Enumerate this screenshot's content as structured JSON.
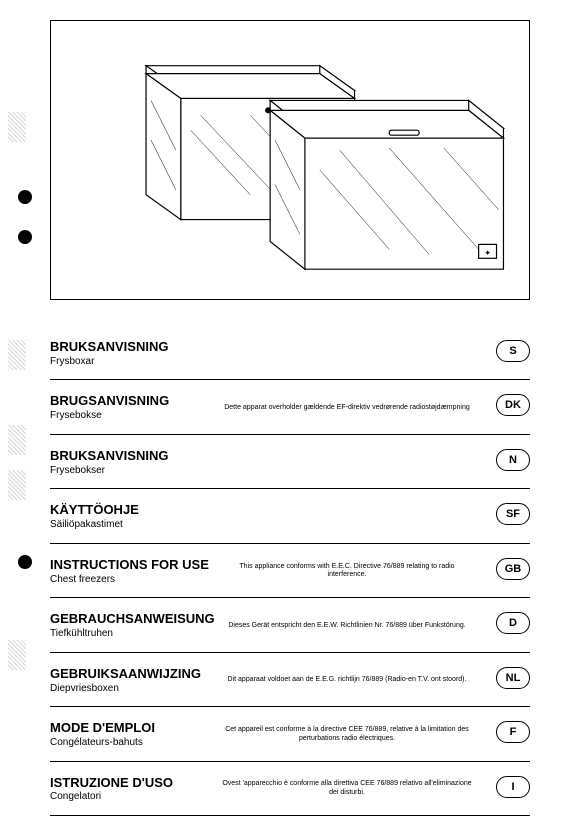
{
  "illustration": {
    "border_color": "#000000",
    "background": "#ffffff"
  },
  "sections": [
    {
      "title": "BRUKSANVISNING",
      "subtitle": "Frysboxar",
      "note": "",
      "badge": "S"
    },
    {
      "title": "BRUGSANVISNING",
      "subtitle": "Frysebokse",
      "note": "Dette apparat overholder gældende EF-direktiv vedrørende radiostøjdæmpning",
      "badge": "DK"
    },
    {
      "title": "BRUKSANVISNING",
      "subtitle": "Frysebokser",
      "note": "",
      "badge": "N"
    },
    {
      "title": "KÄYTTÖOHJE",
      "subtitle": "Säiliöpakastimet",
      "note": "",
      "badge": "SF"
    },
    {
      "title": "INSTRUCTIONS FOR USE",
      "subtitle": "Chest freezers",
      "note": "This appliance conforms with E.E.C. Directive 76/889 relating to radio interference.",
      "badge": "GB"
    },
    {
      "title": "GEBRAUCHSANWEISUNG",
      "subtitle": "Tiefkühltruhen",
      "note": "Dieses Gerät entspricht den E.E.W. Richtlinien Nr. 76/889 über Funkstörung.",
      "badge": "D"
    },
    {
      "title": "GEBRUIKSAANWIJZING",
      "subtitle": "Diepvriesboxen",
      "note": "Dit apparaat voldoet aan de E.E.G. richtlijn 76/889 (Radio-en T.V. ont stoord).",
      "badge": "NL"
    },
    {
      "title": "MODE D'EMPLOI",
      "subtitle": "Congélateurs-bahuts",
      "note": "Cet appareil est conforme à la directive CEE 76/889, relative à la limitation des perturbations radio électriques.",
      "badge": "F"
    },
    {
      "title": "ISTRUZIONE D'USO",
      "subtitle": "Congelatori",
      "note": "Ovest 'apparecchio è conforme alla direttiva CEE 76/889 relativo all'eliminazione dei disturbi.",
      "badge": "I"
    }
  ]
}
